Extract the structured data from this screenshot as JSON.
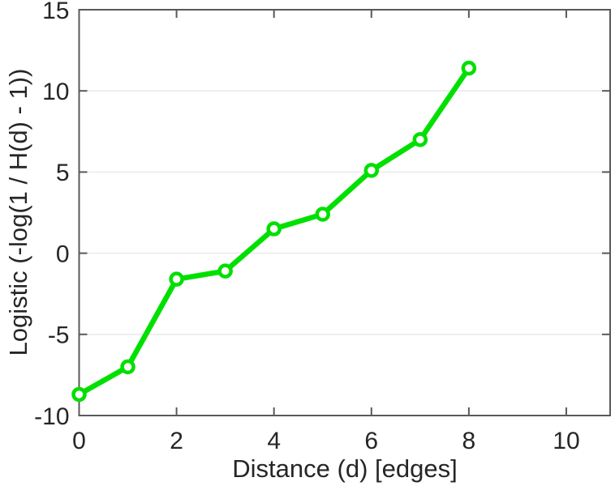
{
  "chart_data": {
    "type": "line",
    "x": [
      0,
      1,
      2,
      3,
      4,
      5,
      6,
      7,
      8
    ],
    "y": [
      -8.7,
      -7.0,
      -1.6,
      -1.1,
      1.5,
      2.4,
      5.1,
      7.0,
      11.4
    ],
    "xlabel": "Distance (d) [edges]",
    "ylabel": "Logistic (-log(1 / H(d) - 1))",
    "xlim": [
      0,
      10.9
    ],
    "ylim": [
      -10,
      15
    ],
    "xticks": [
      0,
      2,
      4,
      6,
      8,
      10
    ],
    "yticks": [
      -10,
      -5,
      0,
      5,
      10,
      15
    ],
    "grid": "horizontal",
    "legend": "none",
    "title": "",
    "line_color": "#00e000",
    "marker": "circle-open",
    "marker_fill": "#ffffff",
    "axis_color": "#595959",
    "grid_color": "#ebebeb",
    "text_color": "#262626",
    "background_color": "#ffffff"
  }
}
